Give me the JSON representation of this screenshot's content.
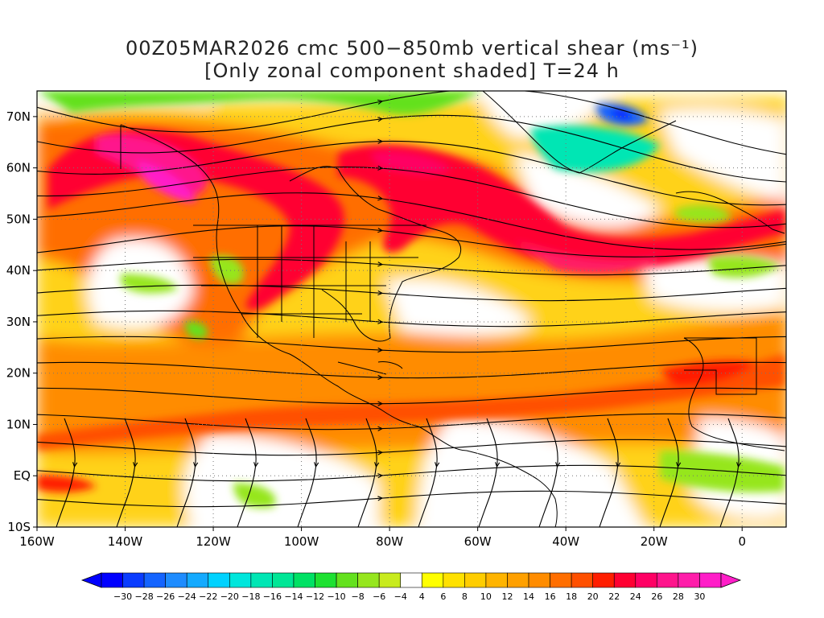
{
  "title": {
    "line1": "00Z05MAR2026 cmc 500−850mb vertical shear (ms⁻¹)",
    "line2": "[Only zonal component shaded] T=24 h"
  },
  "map": {
    "lat_labels": [
      "70N",
      "60N",
      "50N",
      "40N",
      "30N",
      "20N",
      "10N",
      "EQ",
      "10S"
    ],
    "lon_labels": [
      "160W",
      "140W",
      "120W",
      "100W",
      "80W",
      "60W",
      "40W",
      "20W",
      "0"
    ],
    "lat_range": [
      -10,
      75
    ],
    "lon_range": [
      -160,
      10
    ],
    "grid": true
  },
  "colorbar": {
    "labels": [
      "−30",
      "−28",
      "−26",
      "−24",
      "−22",
      "−20",
      "−18",
      "−16",
      "−14",
      "−12",
      "−10",
      "−8",
      "−6",
      "−4",
      "4",
      "6",
      "8",
      "10",
      "12",
      "14",
      "16",
      "18",
      "20",
      "22",
      "24",
      "26",
      "28",
      "30"
    ],
    "colors": [
      "#0000ff",
      "#0a3cff",
      "#1464ff",
      "#1e8cff",
      "#14aaff",
      "#00d2ff",
      "#00e6dc",
      "#00e6b4",
      "#00e696",
      "#00e164",
      "#1ee132",
      "#64e11e",
      "#96e61e",
      "#c8eb1e",
      "#ffffff",
      "#ffff00",
      "#ffe100",
      "#ffcd00",
      "#ffb400",
      "#ffa000",
      "#ff8c00",
      "#ff6e00",
      "#ff5000",
      "#ff1e00",
      "#ff0032",
      "#ff0064",
      "#ff148c",
      "#ff1eaa",
      "#ff1ec8"
    ]
  }
}
